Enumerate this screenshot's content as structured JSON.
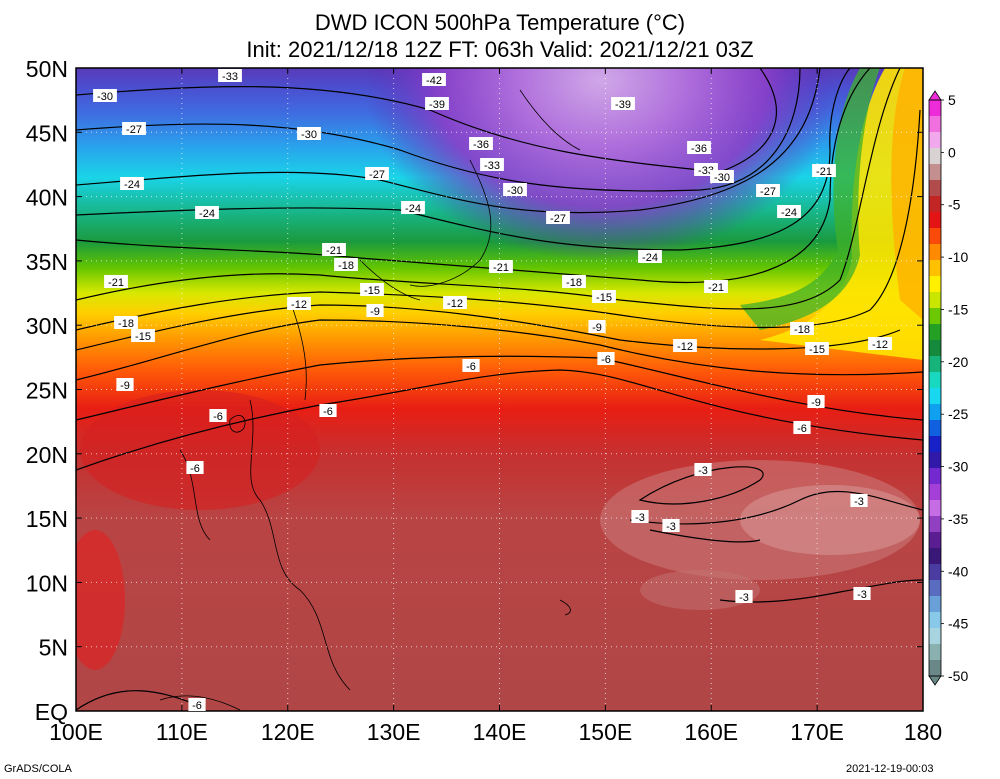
{
  "title": {
    "line1": "DWD ICON 500hPa Temperature (°C)",
    "line2": "Init: 2021/12/18 12Z  FT: 063h  Valid: 2021/12/21 03Z"
  },
  "lat_ticks": [
    "50N",
    "45N",
    "40N",
    "35N",
    "30N",
    "25N",
    "20N",
    "15N",
    "10N",
    "5N",
    "EQ"
  ],
  "lon_ticks": [
    "100E",
    "110E",
    "120E",
    "130E",
    "140E",
    "150E",
    "160E",
    "170E",
    "180"
  ],
  "colorbar": {
    "labels": [
      "5",
      "0",
      "-5",
      "-10",
      "-15",
      "-20",
      "-25",
      "-30",
      "-35",
      "-40",
      "-45",
      "-50"
    ],
    "colors": [
      "#ee2bd9",
      "#f070e0",
      "#f2a8ec",
      "#d8d2d2",
      "#c48f8f",
      "#b24c4c",
      "#c32424",
      "#e41414",
      "#fa4a0a",
      "#ff8a00",
      "#ffc000",
      "#fff000",
      "#c8e600",
      "#6cc800",
      "#24a024",
      "#168a3c",
      "#16b47a",
      "#18d8c0",
      "#18d8f0",
      "#10a0f0",
      "#1060e0",
      "#1820c8",
      "#3018a8",
      "#7428d0",
      "#a440d8",
      "#c66ce4",
      "#9040c0",
      "#5a1e92",
      "#3a1878",
      "#4a3ca0",
      "#5a6cc0",
      "#6aa0d8",
      "#88c8e8",
      "#a8d4e0",
      "#8ab0b0",
      "#6a8888"
    ]
  },
  "contour_labels": [
    {
      "text": "-33"
    },
    {
      "text": "-42"
    },
    {
      "text": "-30"
    },
    {
      "text": "-39"
    },
    {
      "text": "-39"
    },
    {
      "text": "-27"
    },
    {
      "text": "-30"
    },
    {
      "text": "-36"
    },
    {
      "text": "-33"
    },
    {
      "text": "-36"
    },
    {
      "text": "-33"
    },
    {
      "text": "-30"
    },
    {
      "text": "-24"
    },
    {
      "text": "-27"
    },
    {
      "text": "-21"
    },
    {
      "text": "-24"
    },
    {
      "text": "-30"
    },
    {
      "text": "-27"
    },
    {
      "text": "-27"
    },
    {
      "text": "-24"
    },
    {
      "text": "-24"
    },
    {
      "text": "-21"
    },
    {
      "text": "-18"
    },
    {
      "text": "-21"
    },
    {
      "text": "-24"
    },
    {
      "text": "-21"
    },
    {
      "text": "-18"
    },
    {
      "text": "-15"
    },
    {
      "text": "-21"
    },
    {
      "text": "-12"
    },
    {
      "text": "-9"
    },
    {
      "text": "-12"
    },
    {
      "text": "-15"
    },
    {
      "text": "-18"
    },
    {
      "text": "-15"
    },
    {
      "text": "-9"
    },
    {
      "text": "-18"
    },
    {
      "text": "-12"
    },
    {
      "text": "-15"
    },
    {
      "text": "-12"
    },
    {
      "text": "-6"
    },
    {
      "text": "-6"
    },
    {
      "text": "-9"
    },
    {
      "text": "-6"
    },
    {
      "text": "-6"
    },
    {
      "text": "-9"
    },
    {
      "text": "-6"
    },
    {
      "text": "-6"
    },
    {
      "text": "-3"
    },
    {
      "text": "-3"
    },
    {
      "text": "-3"
    },
    {
      "text": "-3"
    },
    {
      "text": "-3"
    },
    {
      "text": "-3"
    },
    {
      "text": "-6"
    }
  ],
  "footer": {
    "left": "GrADS/COLA",
    "right": "2021-12-19-00:03"
  }
}
